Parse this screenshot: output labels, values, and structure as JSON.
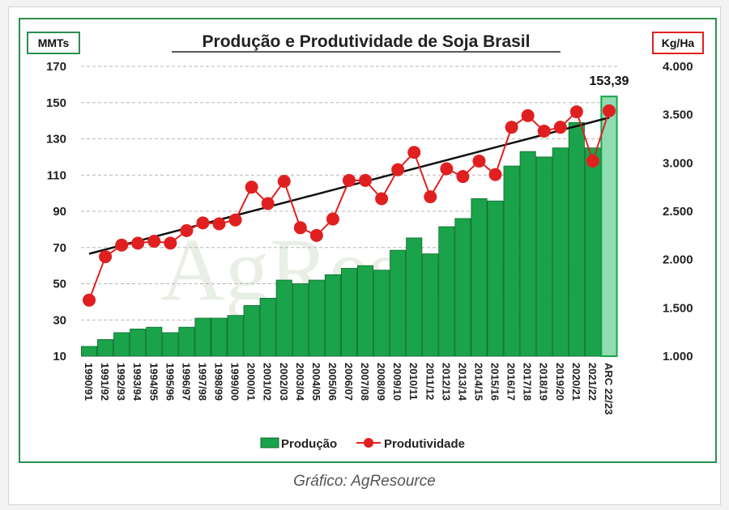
{
  "caption": "Gráfico: AgResource",
  "chart_data": {
    "type": "bar",
    "title": "Produção e Produtividade de Soja Brasil",
    "left_unit": "MMTs",
    "right_unit": "Kg/Ha",
    "categories": [
      "1990/91",
      "1991/92",
      "1992/93",
      "1993/94",
      "1994/95",
      "1995/96",
      "1996/97",
      "1997/98",
      "1998/99",
      "1999/00",
      "2000/01",
      "2001/02",
      "2002/03",
      "2003/04",
      "2004/05",
      "2005/06",
      "2006/07",
      "2007/08",
      "2008/09",
      "2009/10",
      "2010/11",
      "2011/12",
      "2012/13",
      "2013/14",
      "2014/15",
      "2015/16",
      "2016/17",
      "2017/18",
      "2018/19",
      "2019/20",
      "2020/21",
      "2021/22",
      "ARC 22/23"
    ],
    "series": [
      {
        "name": "Produção",
        "axis": "left",
        "color": "#1aa34a",
        "highlight_color": "#8fdcb0",
        "values": [
          15.4,
          19.2,
          23.0,
          25.0,
          26.0,
          23.0,
          26.0,
          31.0,
          31.0,
          32.5,
          38.0,
          42.0,
          52.0,
          50.0,
          52.0,
          55.0,
          58.5,
          60.0,
          57.5,
          68.5,
          75.3,
          66.5,
          81.5,
          86.0,
          97.0,
          95.7,
          115.0,
          123.0,
          120.0,
          125.0,
          139.0,
          125.0,
          153.4
        ]
      },
      {
        "name": "Produtividade",
        "axis": "right",
        "color": "#e02020",
        "values": [
          1580,
          2030,
          2150,
          2170,
          2190,
          2170,
          2300,
          2380,
          2370,
          2410,
          2750,
          2580,
          2810,
          2330,
          2250,
          2420,
          2820,
          2820,
          2630,
          2930,
          3110,
          2650,
          2940,
          2860,
          3020,
          2880,
          3370,
          3490,
          3330,
          3370,
          3530,
          3020,
          3540
        ]
      }
    ],
    "trendline": {
      "series": "Produtividade",
      "start": 2060,
      "end": 3470,
      "color": "#111111"
    },
    "ylim_left": [
      10,
      170
    ],
    "yticks_left": [
      10,
      30,
      50,
      70,
      90,
      110,
      130,
      150,
      170
    ],
    "ylim_right": [
      1000,
      4000
    ],
    "yticks_right": [
      1000,
      1500,
      2000,
      2500,
      3000,
      3500,
      4000
    ],
    "yticklabels_right": [
      "1.000",
      "1.500",
      "2.000",
      "2.500",
      "3.000",
      "3.500",
      "4.000"
    ],
    "annotation": {
      "category": "ARC 22/23",
      "text": "153,39"
    },
    "legend": {
      "position": "bottom",
      "items": [
        "Produção",
        "Produtividade"
      ]
    },
    "grid": true,
    "grid_style": "dashed-horizontal",
    "watermark": "AgResource",
    "colors": {
      "frame_border": "#2a8f4f",
      "unit_left_border": "#2a8f4f",
      "unit_right_border": "#e02020"
    }
  }
}
